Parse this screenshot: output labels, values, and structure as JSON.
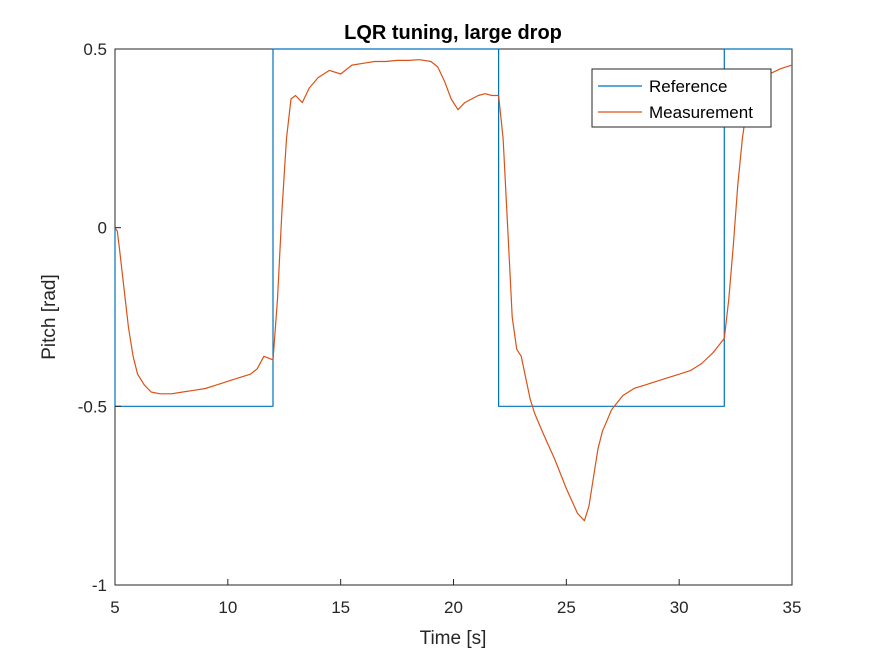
{
  "chart_data": {
    "type": "line",
    "title": "LQR tuning, large drop",
    "xlabel": "Time [s]",
    "ylabel": "Pitch [rad]",
    "xlim": [
      5,
      35
    ],
    "ylim": [
      -1,
      0.5
    ],
    "xticks": [
      5,
      10,
      15,
      20,
      25,
      30,
      35
    ],
    "xtick_labels": [
      "5",
      "10",
      "15",
      "20",
      "25",
      "30",
      "35"
    ],
    "yticks": [
      -1,
      -0.5,
      0,
      0.5
    ],
    "ytick_labels": [
      "-1",
      "-0.5",
      "0",
      "0.5"
    ],
    "grid": false,
    "legend_location": "top-right",
    "series": [
      {
        "name": "Reference",
        "color": "#0072BD",
        "x": [
          5,
          5,
          12,
          12,
          22,
          22,
          32,
          32,
          35
        ],
        "y": [
          0,
          -0.5,
          -0.5,
          0.5,
          0.5,
          -0.5,
          -0.5,
          0.5,
          0.5
        ]
      },
      {
        "name": "Measurement",
        "color": "#D95319",
        "x": [
          5,
          5.1,
          5.2,
          5.4,
          5.6,
          5.8,
          6.0,
          6.3,
          6.6,
          7.0,
          7.5,
          8.0,
          8.5,
          9.0,
          9.5,
          10.0,
          10.5,
          11.0,
          11.3,
          11.6,
          11.8,
          12.0,
          12.2,
          12.4,
          12.6,
          12.8,
          13.0,
          13.3,
          13.6,
          14.0,
          14.5,
          15.0,
          15.5,
          16.0,
          16.5,
          17.0,
          17.5,
          18.0,
          18.5,
          19.0,
          19.3,
          19.6,
          19.9,
          20.2,
          20.5,
          20.8,
          21.1,
          21.4,
          21.7,
          22.0,
          22.2,
          22.4,
          22.6,
          22.8,
          23.0,
          23.2,
          23.4,
          23.6,
          24.0,
          24.5,
          25.0,
          25.5,
          25.8,
          26.0,
          26.2,
          26.4,
          26.6,
          26.8,
          27.0,
          27.5,
          28.0,
          28.5,
          29.0,
          29.5,
          30.0,
          30.5,
          31.0,
          31.5,
          32.0,
          32.2,
          32.4,
          32.6,
          32.8,
          33.0,
          33.2,
          33.5,
          34.0,
          34.5,
          35.0
        ],
        "y": [
          0,
          -0.01,
          -0.06,
          -0.17,
          -0.28,
          -0.36,
          -0.41,
          -0.44,
          -0.46,
          -0.465,
          -0.465,
          -0.46,
          -0.455,
          -0.45,
          -0.44,
          -0.43,
          -0.42,
          -0.41,
          -0.395,
          -0.36,
          -0.365,
          -0.37,
          -0.2,
          0.05,
          0.25,
          0.36,
          0.37,
          0.35,
          0.39,
          0.42,
          0.44,
          0.43,
          0.455,
          0.46,
          0.465,
          0.465,
          0.468,
          0.468,
          0.47,
          0.465,
          0.45,
          0.41,
          0.36,
          0.33,
          0.35,
          0.36,
          0.37,
          0.375,
          0.37,
          0.37,
          0.25,
          0.0,
          -0.25,
          -0.34,
          -0.36,
          -0.42,
          -0.48,
          -0.52,
          -0.58,
          -0.65,
          -0.73,
          -0.8,
          -0.82,
          -0.78,
          -0.7,
          -0.62,
          -0.57,
          -0.54,
          -0.51,
          -0.47,
          -0.45,
          -0.44,
          -0.43,
          -0.42,
          -0.41,
          -0.4,
          -0.38,
          -0.35,
          -0.31,
          -0.2,
          -0.05,
          0.12,
          0.25,
          0.34,
          0.38,
          0.41,
          0.43,
          0.445,
          0.455
        ]
      }
    ]
  }
}
